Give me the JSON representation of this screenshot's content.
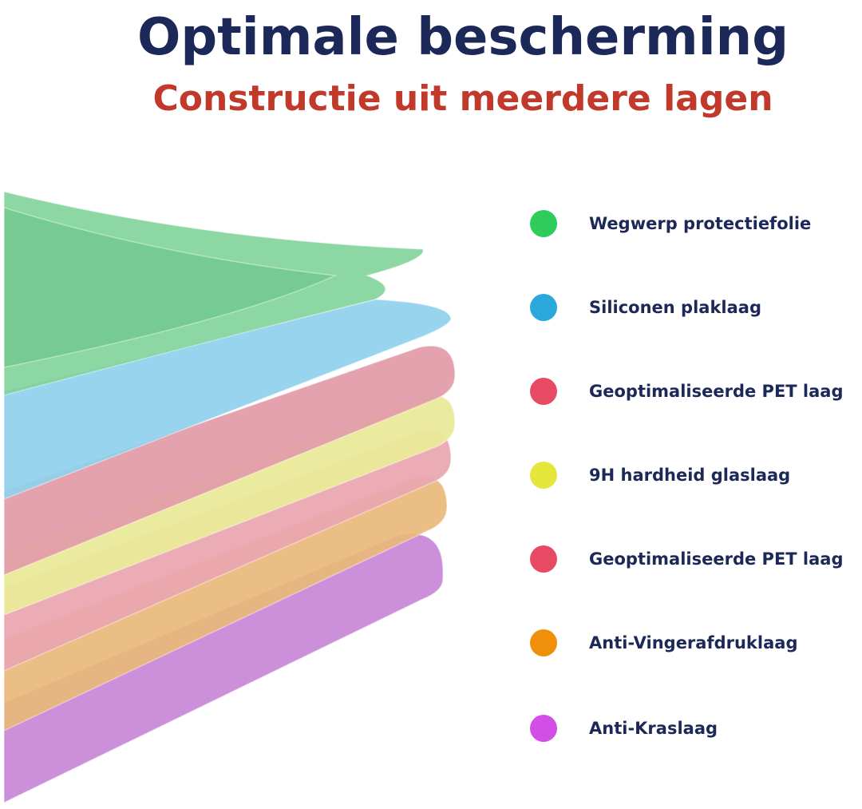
{
  "title": "Optimale bescherming",
  "subtitle": "Constructie uit meerdere lagen",
  "layers": [
    "Wegwerp protectiefolie",
    "Siliconen plaklaag",
    "Geoptimaliseerde PET laag",
    "9H hardheid glaslaag",
    "Geoptimaliseerde PET laag",
    "Anti-Vingerafdruklaag",
    "Anti-Kraslaag"
  ]
}
